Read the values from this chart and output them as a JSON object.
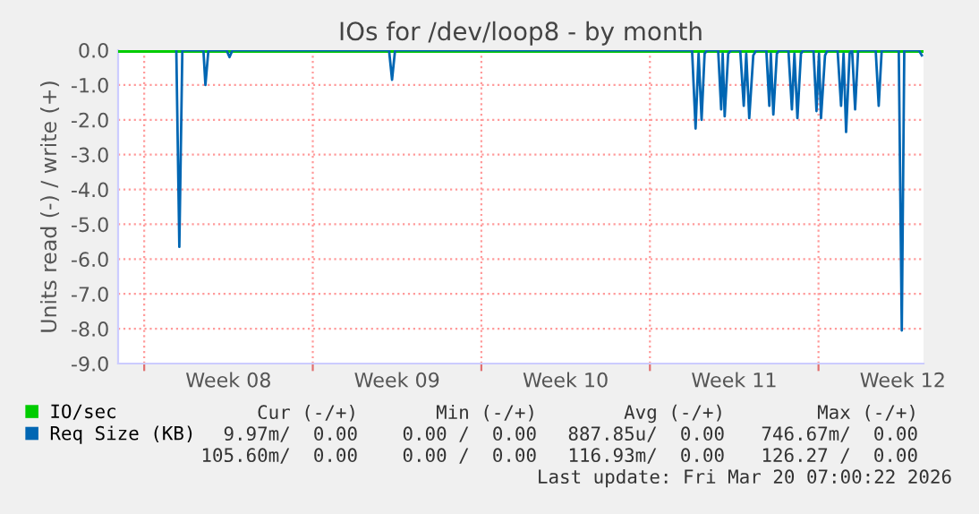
{
  "chart_data": {
    "type": "line",
    "title": "IOs for /dev/loop8 - by month",
    "ylabel": "Units read (-) / write (+)",
    "xlim": [
      "2026-02-14T22:00",
      "2026-03-20T08:40"
    ],
    "xticks": [
      {
        "value": "2026-02-16",
        "label": null
      },
      {
        "value": "2026-02-19T12:00",
        "label": "Week 08"
      },
      {
        "value": "2026-02-23",
        "label": null
      },
      {
        "value": "2026-02-26T12:00",
        "label": "Week 09"
      },
      {
        "value": "2026-03-02",
        "label": null
      },
      {
        "value": "2026-03-05T12:00",
        "label": "Week 10"
      },
      {
        "value": "2026-03-09",
        "label": null
      },
      {
        "value": "2026-03-12T12:00",
        "label": "Week 11"
      },
      {
        "value": "2026-03-16",
        "label": null
      },
      {
        "value": "2026-03-19T12:00",
        "label": "Week 12"
      }
    ],
    "ylim": [
      -9,
      0
    ],
    "yticks": [
      {
        "value": -9,
        "label": "-9.0"
      },
      {
        "value": -8,
        "label": "-8.0"
      },
      {
        "value": -7,
        "label": "-7.0"
      },
      {
        "value": -6,
        "label": "-6.0"
      },
      {
        "value": -5,
        "label": "-5.0"
      },
      {
        "value": -4,
        "label": "-4.0"
      },
      {
        "value": -3,
        "label": "-3.0"
      },
      {
        "value": -2,
        "label": "-2.0"
      },
      {
        "value": -1,
        "label": "-1.0"
      },
      {
        "value": 0,
        "label": "0.0"
      }
    ],
    "grid": true,
    "legend": "bottom left",
    "series": [
      {
        "name": "IO/sec",
        "color": "#00cc00",
        "x": [
          "2026-02-14T22:00",
          "2026-03-20T08:40"
        ],
        "values": [
          0,
          0
        ]
      },
      {
        "name": "Req Size (KB)",
        "color": "#0066b3",
        "x": [
          "2026-02-17T08:00",
          "2026-02-17T11:00",
          "2026-02-17T14:00",
          "2026-02-18T11:00",
          "2026-02-18T13:00",
          "2026-02-18T16:00",
          "2026-02-19T10:00",
          "2026-02-19T13:00",
          "2026-02-19T16:00",
          "2026-02-26T04:00",
          "2026-02-26T07:00",
          "2026-02-26T10:00",
          "2026-03-10T18:00",
          "2026-03-10T21:30",
          "2026-03-11T00:30",
          "2026-03-11T03:30",
          "2026-03-11T06:30",
          "2026-03-11T09:00",
          "2026-03-11T20:00",
          "2026-03-11T23:00",
          "2026-03-12T00:30",
          "2026-03-12T02:30",
          "2026-03-12T06:00",
          "2026-03-12T09:00",
          "2026-03-12T18:00",
          "2026-03-12T21:30",
          "2026-03-13T00:00",
          "2026-03-13T03:00",
          "2026-03-13T07:00",
          "2026-03-13T10:00",
          "2026-03-13T20:00",
          "2026-03-13T23:00",
          "2026-03-14T00:30",
          "2026-03-14T03:00",
          "2026-03-14T06:30",
          "2026-03-14T09:00",
          "2026-03-14T18:00",
          "2026-03-14T21:30",
          "2026-03-15T00:00",
          "2026-03-15T03:00",
          "2026-03-15T06:30",
          "2026-03-15T09:00",
          "2026-03-15T19:00",
          "2026-03-15T22:00",
          "2026-03-16T00:30",
          "2026-03-16T02:30",
          "2026-03-16T06:30",
          "2026-03-16T09:00",
          "2026-03-16T19:00",
          "2026-03-16T22:30",
          "2026-03-17T01:00",
          "2026-03-17T03:30",
          "2026-03-17T07:00",
          "2026-03-17T09:30",
          "2026-03-17T12:30",
          "2026-03-17T15:30",
          "2026-03-18T09:00",
          "2026-03-18T12:00",
          "2026-03-18T15:00",
          "2026-03-19T08:00",
          "2026-03-19T11:00",
          "2026-03-19T13:30",
          "2026-03-20T04:00",
          "2026-03-20T07:00"
        ],
        "values": [
          0,
          -5.65,
          0,
          0,
          -1.0,
          0,
          0,
          -0.2,
          0,
          0,
          -0.85,
          0,
          0,
          -2.25,
          -0.1,
          -2.0,
          -0.1,
          0,
          0,
          -1.7,
          -0.1,
          -1.9,
          -0.1,
          0,
          0,
          -1.6,
          -0.1,
          -1.95,
          -0.15,
          0,
          0,
          -1.6,
          -0.1,
          -1.85,
          -0.1,
          0,
          0,
          -1.7,
          -0.1,
          -1.95,
          -0.1,
          0,
          0,
          -1.75,
          -0.1,
          -1.95,
          -0.15,
          0,
          0,
          -1.6,
          -0.1,
          -2.35,
          -0.1,
          0,
          -1.7,
          0,
          0,
          -1.6,
          0,
          0,
          -8.05,
          0,
          0,
          -0.15
        ]
      }
    ],
    "annotations": [
      "Cur (-/+)",
      "Min (-/+)",
      "Avg (-/+)",
      "Max (-/+)",
      "9.97m/  0.00",
      "0.00 /  0.00",
      "887.85u/  0.00",
      "746.67m/  0.00",
      "105.60m/  0.00",
      "0.00 /  0.00",
      "116.93m/  0.00",
      "126.27 /  0.00",
      "Last update: Fri Mar 20 07:00:22 2026"
    ]
  }
}
